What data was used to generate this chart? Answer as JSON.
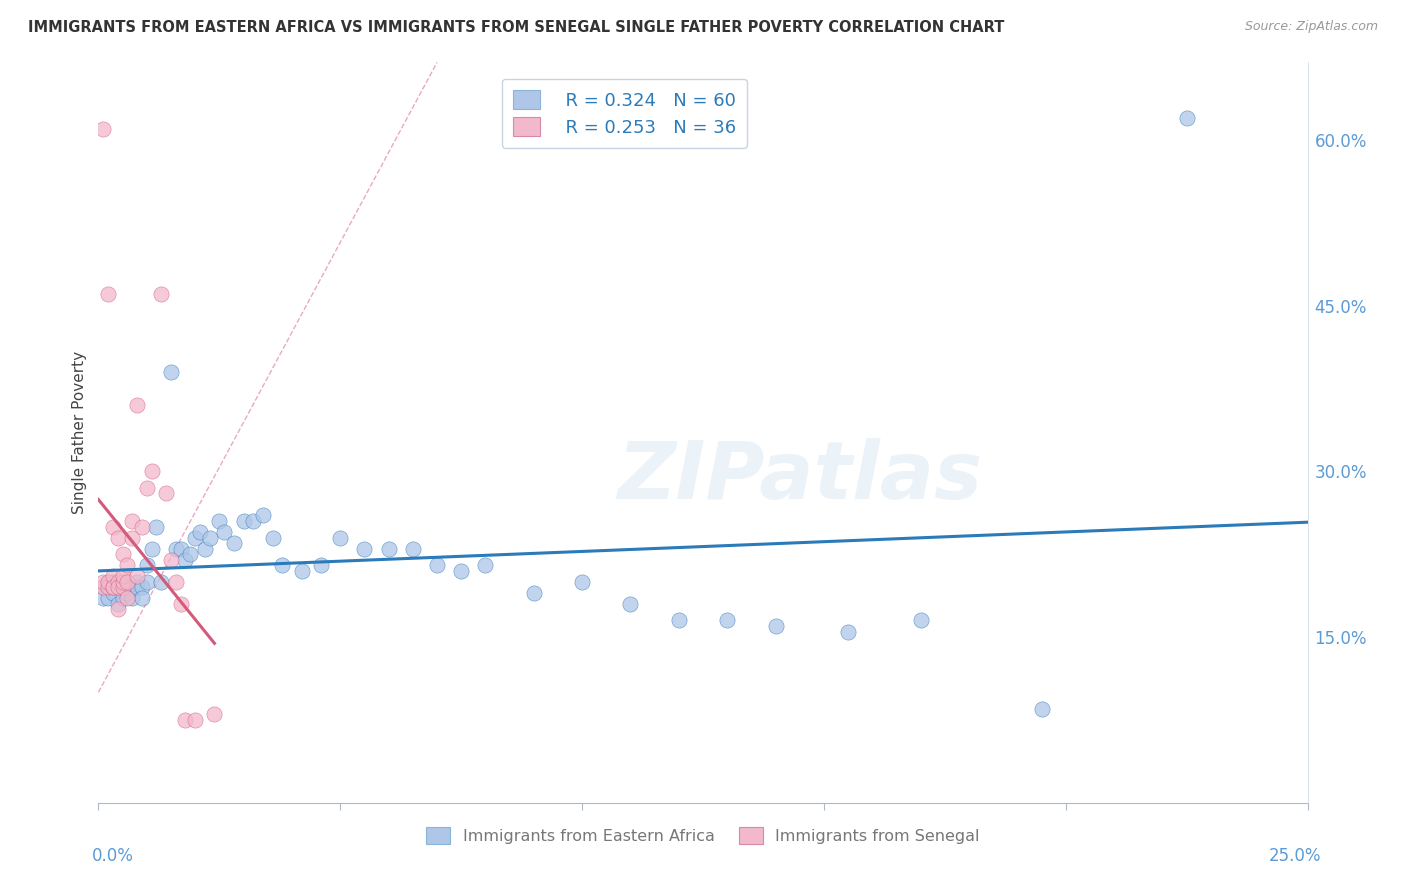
{
  "title": "IMMIGRANTS FROM EASTERN AFRICA VS IMMIGRANTS FROM SENEGAL SINGLE FATHER POVERTY CORRELATION CHART",
  "source": "Source: ZipAtlas.com",
  "ylabel": "Single Father Poverty",
  "right_yticks": [
    0.15,
    0.3,
    0.45,
    0.6
  ],
  "right_yticklabels": [
    "15.0%",
    "30.0%",
    "45.0%",
    "60.0%"
  ],
  "xlim": [
    0.0,
    0.25
  ],
  "ylim": [
    0.0,
    0.67
  ],
  "legend_r1": "R = 0.324",
  "legend_n1": "N = 60",
  "legend_r2": "R = 0.253",
  "legend_n2": "N = 36",
  "color_blue": "#aec6e8",
  "color_pink": "#f2b8cb",
  "trendline_blue": "#2b7bba",
  "trendline_pink": "#d45a7a",
  "dashed_color": "#e8a0b8",
  "watermark": "ZIPatlas",
  "blue_x": [
    0.001,
    0.001,
    0.002,
    0.002,
    0.003,
    0.003,
    0.004,
    0.004,
    0.005,
    0.005,
    0.005,
    0.006,
    0.006,
    0.007,
    0.007,
    0.008,
    0.008,
    0.009,
    0.009,
    0.01,
    0.01,
    0.011,
    0.012,
    0.013,
    0.015,
    0.016,
    0.017,
    0.018,
    0.019,
    0.02,
    0.021,
    0.022,
    0.023,
    0.025,
    0.026,
    0.028,
    0.03,
    0.032,
    0.034,
    0.036,
    0.038,
    0.042,
    0.046,
    0.05,
    0.055,
    0.06,
    0.065,
    0.07,
    0.075,
    0.08,
    0.09,
    0.1,
    0.11,
    0.12,
    0.13,
    0.14,
    0.155,
    0.17,
    0.195,
    0.225
  ],
  "blue_y": [
    0.195,
    0.185,
    0.2,
    0.185,
    0.2,
    0.19,
    0.195,
    0.18,
    0.2,
    0.195,
    0.185,
    0.2,
    0.19,
    0.195,
    0.185,
    0.2,
    0.195,
    0.195,
    0.185,
    0.2,
    0.215,
    0.23,
    0.25,
    0.2,
    0.39,
    0.23,
    0.23,
    0.22,
    0.225,
    0.24,
    0.245,
    0.23,
    0.24,
    0.255,
    0.245,
    0.235,
    0.255,
    0.255,
    0.26,
    0.24,
    0.215,
    0.21,
    0.215,
    0.24,
    0.23,
    0.23,
    0.23,
    0.215,
    0.21,
    0.215,
    0.19,
    0.2,
    0.18,
    0.165,
    0.165,
    0.16,
    0.155,
    0.165,
    0.085,
    0.62
  ],
  "pink_x": [
    0.001,
    0.001,
    0.001,
    0.002,
    0.002,
    0.002,
    0.003,
    0.003,
    0.003,
    0.003,
    0.004,
    0.004,
    0.004,
    0.004,
    0.005,
    0.005,
    0.005,
    0.005,
    0.006,
    0.006,
    0.006,
    0.007,
    0.007,
    0.008,
    0.008,
    0.009,
    0.01,
    0.011,
    0.013,
    0.014,
    0.015,
    0.016,
    0.017,
    0.018,
    0.02,
    0.024
  ],
  "pink_y": [
    0.195,
    0.2,
    0.61,
    0.195,
    0.2,
    0.46,
    0.195,
    0.205,
    0.195,
    0.25,
    0.175,
    0.2,
    0.195,
    0.24,
    0.195,
    0.2,
    0.205,
    0.225,
    0.2,
    0.215,
    0.185,
    0.255,
    0.24,
    0.205,
    0.36,
    0.25,
    0.285,
    0.3,
    0.46,
    0.28,
    0.22,
    0.2,
    0.18,
    0.075,
    0.075,
    0.08
  ]
}
